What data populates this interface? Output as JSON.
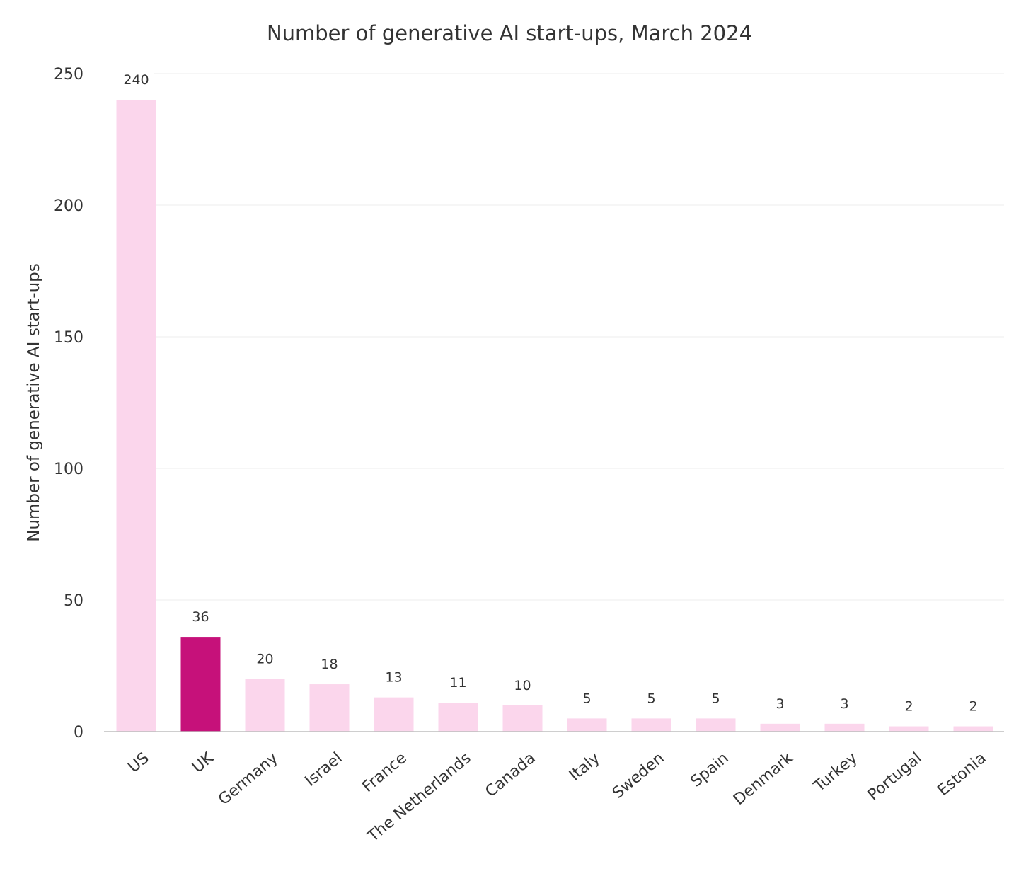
{
  "chart_data": {
    "type": "bar",
    "title": "Number of generative AI start-ups, March 2024",
    "xlabel": "",
    "ylabel": "Number of generative AI start-ups",
    "ylim": [
      0,
      250
    ],
    "yticks": [
      "0",
      "50",
      "100",
      "150",
      "200",
      "250"
    ],
    "grid": true,
    "legend": "none",
    "categories": [
      "US",
      "UK",
      "Germany",
      "Israel",
      "France",
      "The Netherlands",
      "Canada",
      "Italy",
      "Sweden",
      "Spain",
      "Denmark",
      "Turkey",
      "Portugal",
      "Estonia"
    ],
    "values": [
      240,
      36,
      20,
      18,
      13,
      11,
      10,
      5,
      5,
      5,
      3,
      3,
      2,
      2
    ],
    "data_labels": [
      "240",
      "36",
      "20",
      "18",
      "13",
      "11",
      "10",
      "5",
      "5",
      "5",
      "3",
      "3",
      "2",
      "2"
    ],
    "highlight_category": "UK",
    "colors": {
      "default_bar": "#fbd6ec",
      "highlight_bar": "#c6117a",
      "grid": "#ececec",
      "baseline": "#bdbdbd",
      "text": "#333333"
    }
  }
}
